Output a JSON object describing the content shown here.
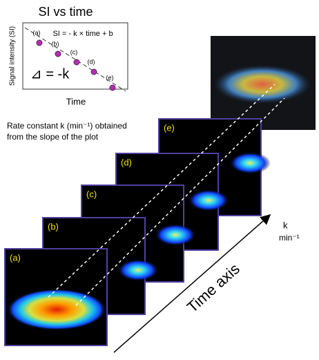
{
  "plot": {
    "title": "SI vs time",
    "y_label": "Signal intensity (SI)",
    "x_label": "Time",
    "equation": "SI = - k × time + b",
    "slope": "⊿ = -k",
    "points": [
      "(a)",
      "(b)",
      "(c)",
      "(d)",
      "(e)"
    ]
  },
  "caption": [
    "Rate constant k (min⁻¹) obtained",
    "from the slope of the plot"
  ],
  "frames": [
    "(a)",
    "(b)",
    "(c)",
    "(d)",
    "(e)"
  ],
  "axis": {
    "label": "Time axis",
    "unit_symbol": "k",
    "unit": "min⁻¹"
  }
}
